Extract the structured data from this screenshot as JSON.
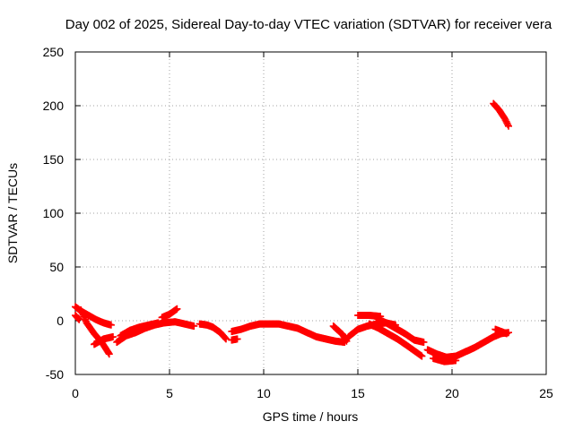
{
  "chart_data": {
    "type": "scatter",
    "title": "Day 002 of 2025, Sidereal Day-to-day VTEC variation (SDTVAR) for receiver vera",
    "xlabel": "GPS time / hours",
    "ylabel": "SDTVAR / TECUs",
    "xlim": [
      0,
      25
    ],
    "ylim": [
      -50,
      250
    ],
    "xticks": [
      0,
      5,
      10,
      15,
      20,
      25
    ],
    "yticks": [
      -50,
      0,
      50,
      100,
      150,
      200,
      250
    ],
    "grid": true,
    "series_color": "#ff0000",
    "series": [
      {
        "name": "arc-1",
        "points": [
          [
            0.0,
            13
          ],
          [
            0.3,
            9
          ],
          [
            0.7,
            5
          ],
          [
            1.1,
            1
          ],
          [
            1.5,
            -2
          ],
          [
            1.9,
            -4
          ]
        ]
      },
      {
        "name": "arc-2",
        "points": [
          [
            0.3,
            10
          ],
          [
            0.6,
            -2
          ],
          [
            1.0,
            -12
          ],
          [
            1.4,
            -20
          ],
          [
            1.8,
            -31
          ]
        ]
      },
      {
        "name": "arc-3",
        "points": [
          [
            0.0,
            5
          ],
          [
            0.2,
            1
          ]
        ]
      },
      {
        "name": "arc-4",
        "points": [
          [
            1.0,
            -22
          ],
          [
            1.5,
            -17
          ],
          [
            2.0,
            -15
          ]
        ]
      },
      {
        "name": "arc-5",
        "points": [
          [
            2.2,
            -20
          ],
          [
            2.7,
            -14
          ],
          [
            3.2,
            -11
          ],
          [
            3.7,
            -7
          ],
          [
            4.2,
            -4
          ],
          [
            4.7,
            -2
          ],
          [
            5.3,
            -1
          ],
          [
            5.8,
            -3
          ],
          [
            6.3,
            -5
          ]
        ]
      },
      {
        "name": "arc-6",
        "points": [
          [
            2.4,
            -14
          ],
          [
            2.9,
            -9
          ],
          [
            3.4,
            -6
          ],
          [
            3.9,
            -4
          ],
          [
            4.4,
            -2
          ]
        ]
      },
      {
        "name": "arc-7",
        "points": [
          [
            4.6,
            3
          ],
          [
            5.0,
            6
          ],
          [
            5.4,
            11
          ]
        ]
      },
      {
        "name": "arc-8",
        "points": [
          [
            6.6,
            -3
          ],
          [
            7.0,
            -4
          ],
          [
            7.3,
            -6
          ]
        ]
      },
      {
        "name": "arc-9",
        "points": [
          [
            7.3,
            -6
          ],
          [
            7.7,
            -11
          ],
          [
            8.0,
            -17
          ]
        ]
      },
      {
        "name": "arc-10",
        "points": [
          [
            8.3,
            -10
          ],
          [
            8.8,
            -8
          ],
          [
            9.3,
            -5
          ],
          [
            9.8,
            -3
          ],
          [
            10.3,
            -3
          ],
          [
            10.8,
            -3
          ],
          [
            11.3,
            -5
          ],
          [
            11.8,
            -7
          ],
          [
            12.3,
            -11
          ],
          [
            12.8,
            -15
          ],
          [
            13.3,
            -17
          ],
          [
            13.8,
            -19
          ],
          [
            14.3,
            -20
          ]
        ]
      },
      {
        "name": "arc-11",
        "points": [
          [
            8.3,
            -18
          ],
          [
            8.6,
            -17
          ]
        ]
      },
      {
        "name": "arc-12",
        "points": [
          [
            13.7,
            -5
          ],
          [
            14.2,
            -13
          ],
          [
            14.4,
            -19
          ]
        ]
      },
      {
        "name": "arc-13",
        "points": [
          [
            14.5,
            -15
          ],
          [
            15.0,
            -8
          ],
          [
            15.5,
            -5
          ],
          [
            16.0,
            -3
          ],
          [
            16.5,
            -2
          ],
          [
            17.0,
            -4
          ]
        ]
      },
      {
        "name": "arc-14",
        "points": [
          [
            15.0,
            5
          ],
          [
            15.6,
            5
          ],
          [
            16.2,
            4
          ]
        ]
      },
      {
        "name": "arc-15",
        "points": [
          [
            15.6,
            -3
          ],
          [
            16.1,
            -7
          ],
          [
            16.6,
            -12
          ],
          [
            17.1,
            -17
          ],
          [
            17.6,
            -23
          ],
          [
            18.0,
            -28
          ],
          [
            18.4,
            -33
          ]
        ]
      },
      {
        "name": "arc-16",
        "points": [
          [
            16.0,
            2
          ],
          [
            16.5,
            -2
          ],
          [
            17.0,
            -7
          ],
          [
            17.5,
            -12
          ],
          [
            18.0,
            -18
          ],
          [
            18.5,
            -20
          ]
        ]
      },
      {
        "name": "arc-17",
        "points": [
          [
            18.7,
            -27
          ],
          [
            19.2,
            -31
          ],
          [
            19.7,
            -34
          ],
          [
            20.2,
            -33
          ],
          [
            20.7,
            -29
          ],
          [
            21.2,
            -25
          ],
          [
            21.7,
            -20
          ],
          [
            22.2,
            -15
          ],
          [
            22.6,
            -12
          ],
          [
            23.0,
            -11
          ]
        ]
      },
      {
        "name": "arc-18",
        "points": [
          [
            19.0,
            -35
          ],
          [
            19.6,
            -38
          ],
          [
            20.2,
            -37
          ]
        ]
      },
      {
        "name": "arc-19",
        "points": [
          [
            22.3,
            -8
          ],
          [
            22.6,
            -10
          ],
          [
            22.9,
            -12
          ]
        ]
      },
      {
        "name": "arc-20",
        "points": [
          [
            22.2,
            202
          ],
          [
            22.5,
            196
          ],
          [
            22.8,
            188
          ],
          [
            23.0,
            181
          ]
        ]
      }
    ]
  }
}
